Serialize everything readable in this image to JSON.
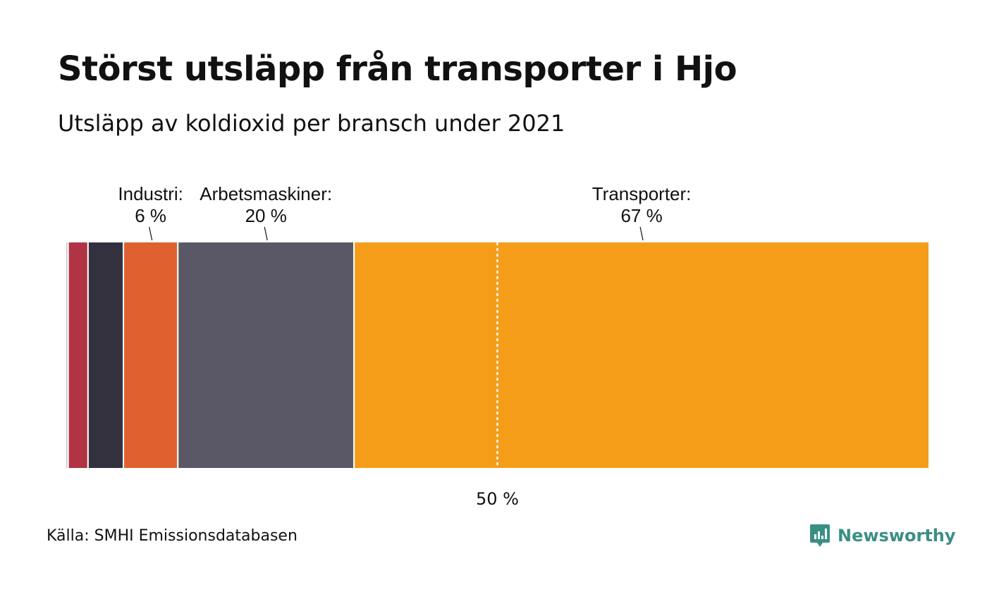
{
  "title": "Störst utsläpp från transporter i Hjo",
  "subtitle": "Utsläpp av koldioxid per bransch under 2021",
  "source": "Källa: SMHI Emissionsdatabasen",
  "brand": {
    "name": "Newsworthy",
    "icon": "chart-bubble-icon",
    "color": "#3a8f85"
  },
  "chart_data": {
    "type": "bar",
    "orientation": "horizontal-stacked",
    "unit": "%",
    "categories": [
      "",
      "",
      "",
      "Industri",
      "Arbetsmaskiner",
      "Transporter"
    ],
    "values": [
      0.3,
      2.3,
      4.1,
      6.3,
      20.4,
      66.6
    ],
    "colors": [
      "#c7c7c7",
      "#b03443",
      "#34313f",
      "#e0612f",
      "#5a5866",
      "#f59d19"
    ],
    "labels": [
      {
        "name": "Industri:",
        "value": "6 %",
        "segment": 3
      },
      {
        "name": "Arbetsmaskiner:",
        "value": "20 %",
        "segment": 4
      },
      {
        "name": "Transporter:",
        "value": "67 %",
        "segment": 5
      }
    ],
    "reference_line": {
      "value": 50,
      "label": "50 %"
    },
    "xlim": [
      0,
      100
    ]
  }
}
